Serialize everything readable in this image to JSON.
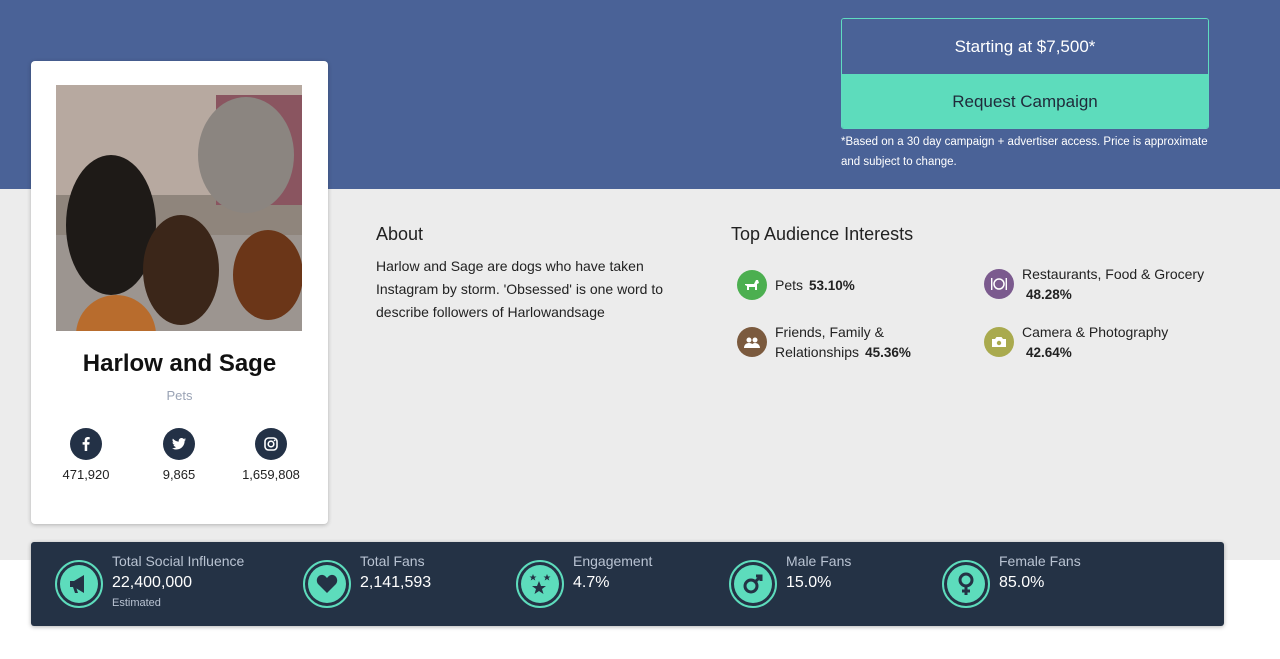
{
  "pricing": {
    "price_label": "Starting at $7,500*",
    "cta_label": "Request Campaign",
    "note": "*Based on a 30 day campaign + advertiser access. Price is approximate and subject to change."
  },
  "profile": {
    "name": "Harlow and Sage",
    "category": "Pets",
    "social": [
      {
        "network": "facebook",
        "icon": "facebook-icon",
        "count": "471,920"
      },
      {
        "network": "twitter",
        "icon": "twitter-icon",
        "count": "9,865"
      },
      {
        "network": "instagram",
        "icon": "instagram-icon",
        "count": "1,659,808"
      }
    ]
  },
  "about": {
    "heading": "About",
    "text": "Harlow and Sage are dogs who have taken Instagram by storm. 'Obsessed' is one word to describe followers of Harlowandsage"
  },
  "interests": {
    "heading": "Top Audience Interests",
    "items": [
      {
        "label": "Pets",
        "percent": "53.10%",
        "icon": "dog-icon",
        "color": "#4caf50"
      },
      {
        "label": "Restaurants, Food & Grocery",
        "percent": "48.28%",
        "icon": "dining-icon",
        "color": "#7b5a8e"
      },
      {
        "label": "Friends, Family & Relationships",
        "percent": "45.36%",
        "icon": "people-icon",
        "color": "#7b5a3e"
      },
      {
        "label": "Camera & Photography",
        "percent": "42.64%",
        "icon": "camera-icon",
        "color": "#a9aa4e"
      }
    ]
  },
  "stats": [
    {
      "label": "Total Social Influence",
      "value": "22,400,000",
      "sub": "Estimated",
      "icon": "megaphone-icon"
    },
    {
      "label": "Total Fans",
      "value": "2,141,593",
      "icon": "heart-icon"
    },
    {
      "label": "Engagement",
      "value": "4.7%",
      "icon": "stars-icon"
    },
    {
      "label": "Male Fans",
      "value": "15.0%",
      "icon": "male-icon"
    },
    {
      "label": "Female Fans",
      "value": "85.0%",
      "icon": "female-icon"
    }
  ],
  "colors": {
    "hero": "#4a6297",
    "accent": "#5ddcbc",
    "dark": "#243245"
  }
}
